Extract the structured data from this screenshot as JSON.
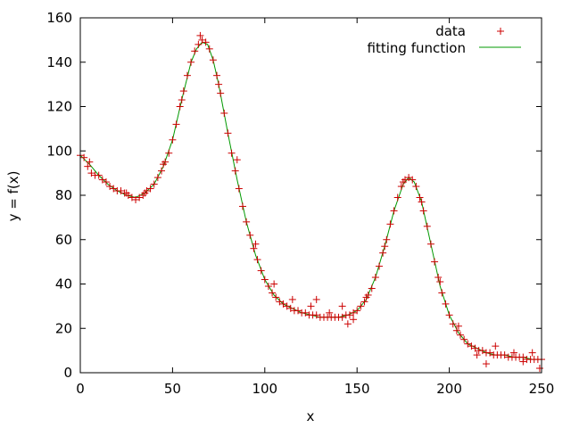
{
  "chart_data": {
    "type": "scatter",
    "title": "",
    "xlabel": "x",
    "ylabel": "y = f(x)",
    "xlim": [
      0,
      250
    ],
    "ylim": [
      0,
      160
    ],
    "xticks": [
      0,
      50,
      100,
      150,
      200,
      250
    ],
    "yticks": [
      0,
      20,
      40,
      60,
      80,
      100,
      120,
      140,
      160
    ],
    "grid": false,
    "legend_position": "top-right",
    "series": [
      {
        "name": "data",
        "kind": "points",
        "marker": "plus",
        "color": "#cc0000",
        "points": [
          [
            0,
            98
          ],
          [
            2,
            97
          ],
          [
            4,
            93
          ],
          [
            6,
            90
          ],
          [
            8,
            89
          ],
          [
            10,
            89
          ],
          [
            12,
            87
          ],
          [
            14,
            86
          ],
          [
            16,
            84
          ],
          [
            18,
            83
          ],
          [
            20,
            82
          ],
          [
            22,
            82
          ],
          [
            24,
            81
          ],
          [
            26,
            80
          ],
          [
            28,
            79
          ],
          [
            30,
            78
          ],
          [
            32,
            79
          ],
          [
            34,
            80
          ],
          [
            36,
            82
          ],
          [
            38,
            83
          ],
          [
            40,
            85
          ],
          [
            42,
            88
          ],
          [
            44,
            91
          ],
          [
            46,
            95
          ],
          [
            48,
            99
          ],
          [
            50,
            105
          ],
          [
            52,
            112
          ],
          [
            54,
            120
          ],
          [
            56,
            127
          ],
          [
            58,
            134
          ],
          [
            60,
            140
          ],
          [
            62,
            145
          ],
          [
            64,
            148
          ],
          [
            66,
            150
          ],
          [
            68,
            149
          ],
          [
            70,
            146
          ],
          [
            72,
            141
          ],
          [
            74,
            134
          ],
          [
            76,
            126
          ],
          [
            78,
            117
          ],
          [
            80,
            108
          ],
          [
            82,
            99
          ],
          [
            84,
            91
          ],
          [
            86,
            83
          ],
          [
            88,
            75
          ],
          [
            90,
            68
          ],
          [
            92,
            62
          ],
          [
            94,
            56
          ],
          [
            96,
            51
          ],
          [
            98,
            46
          ],
          [
            100,
            42
          ],
          [
            102,
            39
          ],
          [
            104,
            36
          ],
          [
            106,
            34
          ],
          [
            108,
            32
          ],
          [
            110,
            31
          ],
          [
            112,
            30
          ],
          [
            114,
            29
          ],
          [
            116,
            28
          ],
          [
            118,
            28
          ],
          [
            120,
            27
          ],
          [
            122,
            27
          ],
          [
            124,
            26
          ],
          [
            126,
            26
          ],
          [
            128,
            26
          ],
          [
            130,
            25
          ],
          [
            132,
            25
          ],
          [
            134,
            25
          ],
          [
            136,
            25
          ],
          [
            138,
            25
          ],
          [
            140,
            25
          ],
          [
            142,
            25
          ],
          [
            144,
            26
          ],
          [
            146,
            26
          ],
          [
            148,
            27
          ],
          [
            150,
            28
          ],
          [
            152,
            30
          ],
          [
            154,
            32
          ],
          [
            156,
            35
          ],
          [
            158,
            38
          ],
          [
            160,
            43
          ],
          [
            162,
            48
          ],
          [
            164,
            54
          ],
          [
            166,
            60
          ],
          [
            168,
            67
          ],
          [
            170,
            73
          ],
          [
            172,
            79
          ],
          [
            174,
            84
          ],
          [
            176,
            87
          ],
          [
            178,
            88
          ],
          [
            180,
            87
          ],
          [
            182,
            84
          ],
          [
            184,
            79
          ],
          [
            186,
            73
          ],
          [
            188,
            66
          ],
          [
            190,
            58
          ],
          [
            192,
            50
          ],
          [
            194,
            43
          ],
          [
            196,
            36
          ],
          [
            198,
            31
          ],
          [
            200,
            26
          ],
          [
            202,
            22
          ],
          [
            204,
            19
          ],
          [
            206,
            17
          ],
          [
            208,
            15
          ],
          [
            210,
            13
          ],
          [
            212,
            12
          ],
          [
            214,
            11
          ],
          [
            216,
            10
          ],
          [
            218,
            10
          ],
          [
            220,
            9
          ],
          [
            222,
            9
          ],
          [
            224,
            8
          ],
          [
            226,
            8
          ],
          [
            228,
            8
          ],
          [
            230,
            8
          ],
          [
            232,
            7
          ],
          [
            234,
            7
          ],
          [
            236,
            7
          ],
          [
            238,
            7
          ],
          [
            240,
            7
          ],
          [
            242,
            6
          ],
          [
            244,
            6
          ],
          [
            246,
            6
          ],
          [
            248,
            6
          ],
          [
            250,
            6
          ],
          [
            5,
            95
          ],
          [
            25,
            81
          ],
          [
            35,
            81
          ],
          [
            45,
            94
          ],
          [
            55,
            123
          ],
          [
            65,
            152
          ],
          [
            75,
            130
          ],
          [
            85,
            96
          ],
          [
            95,
            58
          ],
          [
            105,
            40
          ],
          [
            115,
            33
          ],
          [
            125,
            30
          ],
          [
            135,
            27
          ],
          [
            145,
            22
          ],
          [
            155,
            34
          ],
          [
            165,
            57
          ],
          [
            175,
            86
          ],
          [
            185,
            77
          ],
          [
            195,
            41
          ],
          [
            205,
            21
          ],
          [
            215,
            8
          ],
          [
            225,
            12
          ],
          [
            235,
            9
          ],
          [
            245,
            9
          ],
          [
            249,
            2
          ],
          [
            128,
            33
          ],
          [
            142,
            30
          ],
          [
            148,
            24
          ],
          [
            220,
            4
          ],
          [
            240,
            5
          ]
        ]
      },
      {
        "name": "fitting function",
        "kind": "line",
        "color": "#009900",
        "points": [
          [
            0,
            98
          ],
          [
            5,
            94
          ],
          [
            10,
            89
          ],
          [
            15,
            85
          ],
          [
            20,
            82
          ],
          [
            25,
            80
          ],
          [
            30,
            79
          ],
          [
            35,
            81
          ],
          [
            40,
            85
          ],
          [
            45,
            93
          ],
          [
            50,
            105
          ],
          [
            55,
            123
          ],
          [
            60,
            140
          ],
          [
            63,
            146
          ],
          [
            66,
            149
          ],
          [
            69,
            148
          ],
          [
            72,
            141
          ],
          [
            75,
            130
          ],
          [
            80,
            108
          ],
          [
            85,
            87
          ],
          [
            90,
            68
          ],
          [
            95,
            53
          ],
          [
            100,
            42
          ],
          [
            105,
            35
          ],
          [
            110,
            31
          ],
          [
            115,
            29
          ],
          [
            120,
            27
          ],
          [
            125,
            26
          ],
          [
            130,
            25
          ],
          [
            135,
            25
          ],
          [
            140,
            25
          ],
          [
            145,
            26
          ],
          [
            150,
            28
          ],
          [
            155,
            33
          ],
          [
            160,
            43
          ],
          [
            165,
            57
          ],
          [
            170,
            73
          ],
          [
            175,
            85
          ],
          [
            178,
            88
          ],
          [
            181,
            86
          ],
          [
            185,
            77
          ],
          [
            190,
            58
          ],
          [
            195,
            39
          ],
          [
            200,
            26
          ],
          [
            205,
            18
          ],
          [
            210,
            13
          ],
          [
            215,
            11
          ],
          [
            220,
            9
          ],
          [
            225,
            8
          ],
          [
            230,
            8
          ],
          [
            235,
            7
          ],
          [
            240,
            7
          ],
          [
            245,
            6
          ],
          [
            250,
            6
          ]
        ]
      }
    ]
  }
}
